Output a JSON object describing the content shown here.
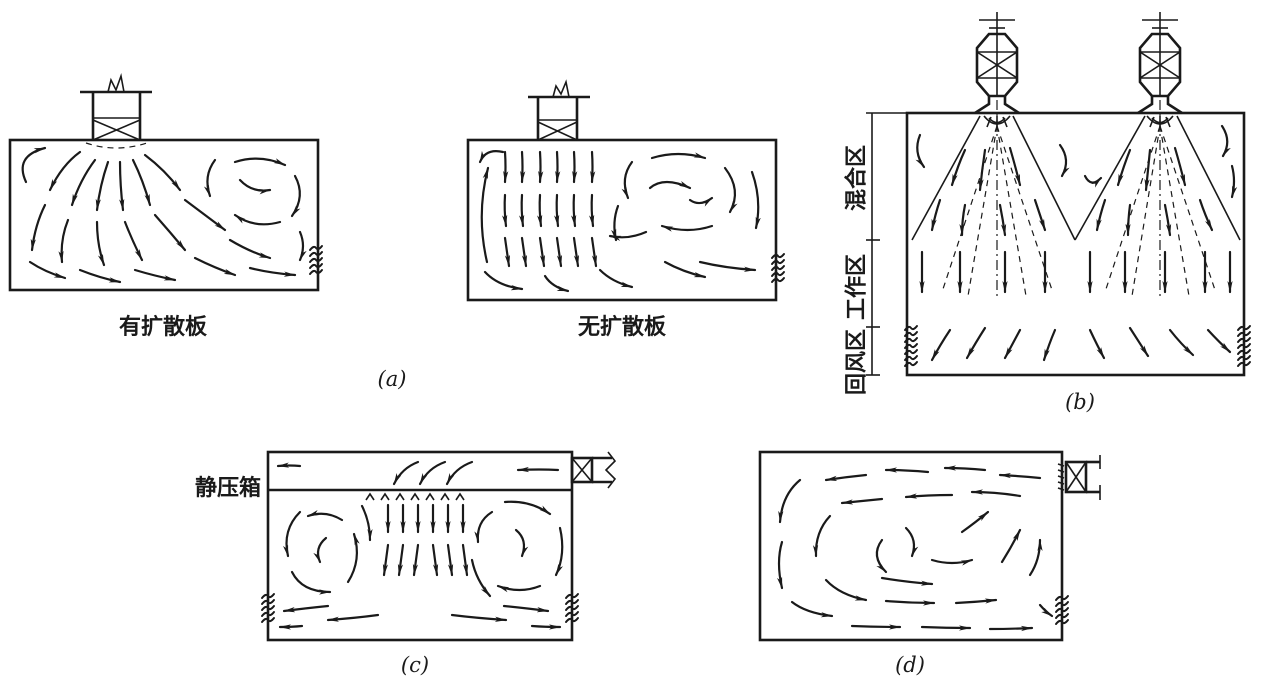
{
  "panel_a": {
    "caption_with_diffuser": "有扩散板",
    "caption_without_diffuser": "无扩散板",
    "label": "(a)"
  },
  "panel_b": {
    "zone_mixing": "混合区",
    "zone_working": "工作区",
    "zone_return": "回风区",
    "label": "(b)"
  },
  "panel_c": {
    "plenum_label": "静压箱",
    "label": "(c)"
  },
  "panel_d": {
    "label": "(d)"
  }
}
